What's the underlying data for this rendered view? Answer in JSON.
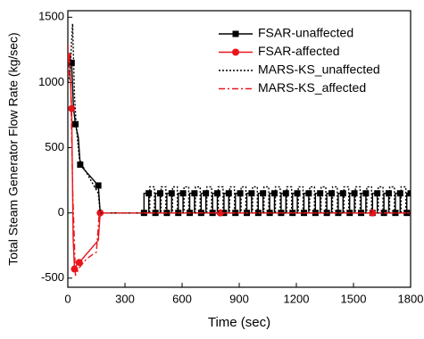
{
  "chart_data": {
    "type": "line",
    "x_label": "Time (sec)",
    "y_label": "Total Steam Generator Flow Rate (kg/sec)",
    "xlim": [
      0,
      1800
    ],
    "xticks": [
      0,
      300,
      600,
      900,
      1200,
      1500,
      1800
    ],
    "ylim": [
      -570,
      1550
    ],
    "yticks": [
      -500,
      0,
      500,
      1000,
      1500
    ],
    "legend": "upper right",
    "series": [
      {
        "name": "FSAR-unaffected",
        "color": "#000000",
        "line_style": "solid",
        "marker": "square",
        "x": [
          0,
          10,
          20,
          30,
          40,
          55,
          65,
          75,
          160,
          170,
          400,
          400,
          425,
          425,
          460,
          460,
          485,
          485,
          520,
          520,
          545,
          545,
          580,
          580,
          605,
          605,
          640,
          640,
          665,
          665,
          700,
          700,
          725,
          725,
          760,
          760,
          785,
          785,
          820,
          820,
          845,
          845,
          880,
          880,
          905,
          905,
          940,
          940,
          965,
          965,
          1000,
          1000,
          1025,
          1025,
          1060,
          1060,
          1085,
          1085,
          1120,
          1120,
          1145,
          1145,
          1180,
          1180,
          1205,
          1205,
          1240,
          1240,
          1265,
          1265,
          1300,
          1300,
          1325,
          1325,
          1360,
          1360,
          1385,
          1385,
          1420,
          1420,
          1445,
          1445,
          1480,
          1480,
          1505,
          1505,
          1540,
          1540,
          1565,
          1565,
          1600,
          1600,
          1625,
          1625,
          1660,
          1660,
          1685,
          1685,
          1720,
          1720,
          1745,
          1745,
          1780,
          1780,
          1800
        ],
        "values": [
          1200,
          1200,
          1150,
          800,
          680,
          580,
          370,
          350,
          210,
          0,
          0,
          150,
          150,
          0,
          0,
          150,
          150,
          0,
          0,
          150,
          150,
          0,
          0,
          150,
          150,
          0,
          0,
          150,
          150,
          0,
          0,
          150,
          150,
          0,
          0,
          150,
          150,
          0,
          0,
          150,
          150,
          0,
          0,
          150,
          150,
          0,
          0,
          150,
          150,
          0,
          0,
          150,
          150,
          0,
          0,
          150,
          150,
          0,
          0,
          150,
          150,
          0,
          0,
          150,
          150,
          0,
          0,
          150,
          150,
          0,
          0,
          150,
          150,
          0,
          0,
          150,
          150,
          0,
          0,
          150,
          150,
          0,
          0,
          150,
          150,
          0,
          0,
          150,
          150,
          0,
          0,
          150,
          150,
          0,
          0,
          150,
          150,
          0,
          0,
          150,
          150,
          0,
          0,
          150,
          150
        ]
      },
      {
        "name": "FSAR-affected",
        "color": "#e8161b",
        "line_style": "solid",
        "marker": "circle",
        "x": [
          0,
          10,
          20,
          28,
          35,
          45,
          60,
          160,
          170,
          400,
          800,
          1200,
          1600,
          1800
        ],
        "values": [
          1200,
          1170,
          800,
          -200,
          -430,
          -400,
          -380,
          -210,
          0,
          0,
          0,
          0,
          0,
          0
        ]
      },
      {
        "name": "MARS-KS_unaffected",
        "color": "#000000",
        "line_style": "dotted",
        "marker": null,
        "x": [
          0,
          10,
          25,
          35,
          45,
          60,
          70,
          160,
          170,
          430,
          430,
          455,
          455,
          490,
          490,
          515,
          515,
          550,
          550,
          575,
          575,
          610,
          610,
          635,
          635,
          670,
          670,
          695,
          695,
          730,
          730,
          755,
          755,
          790,
          790,
          815,
          815,
          850,
          850,
          875,
          875,
          910,
          910,
          935,
          935,
          970,
          970,
          995,
          995,
          1030,
          1030,
          1055,
          1055,
          1090,
          1090,
          1115,
          1115,
          1150,
          1150,
          1175,
          1175,
          1210,
          1210,
          1235,
          1235,
          1270,
          1270,
          1295,
          1295,
          1330,
          1330,
          1355,
          1355,
          1390,
          1390,
          1415,
          1415,
          1450,
          1450,
          1475,
          1475,
          1510,
          1510,
          1535,
          1535,
          1570,
          1570,
          1595,
          1595,
          1630,
          1630,
          1655,
          1655,
          1690,
          1690,
          1715,
          1715,
          1750,
          1750,
          1775,
          1775,
          1800
        ],
        "values": [
          1000,
          1050,
          1450,
          900,
          650,
          420,
          380,
          150,
          0,
          0,
          200,
          200,
          0,
          0,
          200,
          200,
          0,
          0,
          200,
          200,
          0,
          0,
          200,
          200,
          0,
          0,
          200,
          200,
          0,
          0,
          200,
          200,
          0,
          0,
          200,
          200,
          0,
          0,
          200,
          200,
          0,
          0,
          200,
          200,
          0,
          0,
          200,
          200,
          0,
          0,
          200,
          200,
          0,
          0,
          200,
          200,
          0,
          0,
          200,
          200,
          0,
          0,
          200,
          200,
          0,
          0,
          200,
          200,
          0,
          0,
          200,
          200,
          0,
          0,
          200,
          200,
          0,
          0,
          200,
          200,
          0,
          0,
          200,
          200,
          0,
          0,
          200,
          200,
          0,
          0,
          200,
          200,
          0,
          0,
          200,
          200,
          0,
          0,
          200,
          200,
          0,
          0
        ]
      },
      {
        "name": "MARS-KS_affected",
        "color": "#e8161b",
        "line_style": "dashdot",
        "marker": null,
        "x": [
          0,
          8,
          15,
          25,
          40,
          60,
          100,
          150,
          165,
          1800
        ],
        "values": [
          1300,
          1050,
          1000,
          200,
          -480,
          -420,
          -350,
          -300,
          0,
          0
        ]
      }
    ]
  }
}
